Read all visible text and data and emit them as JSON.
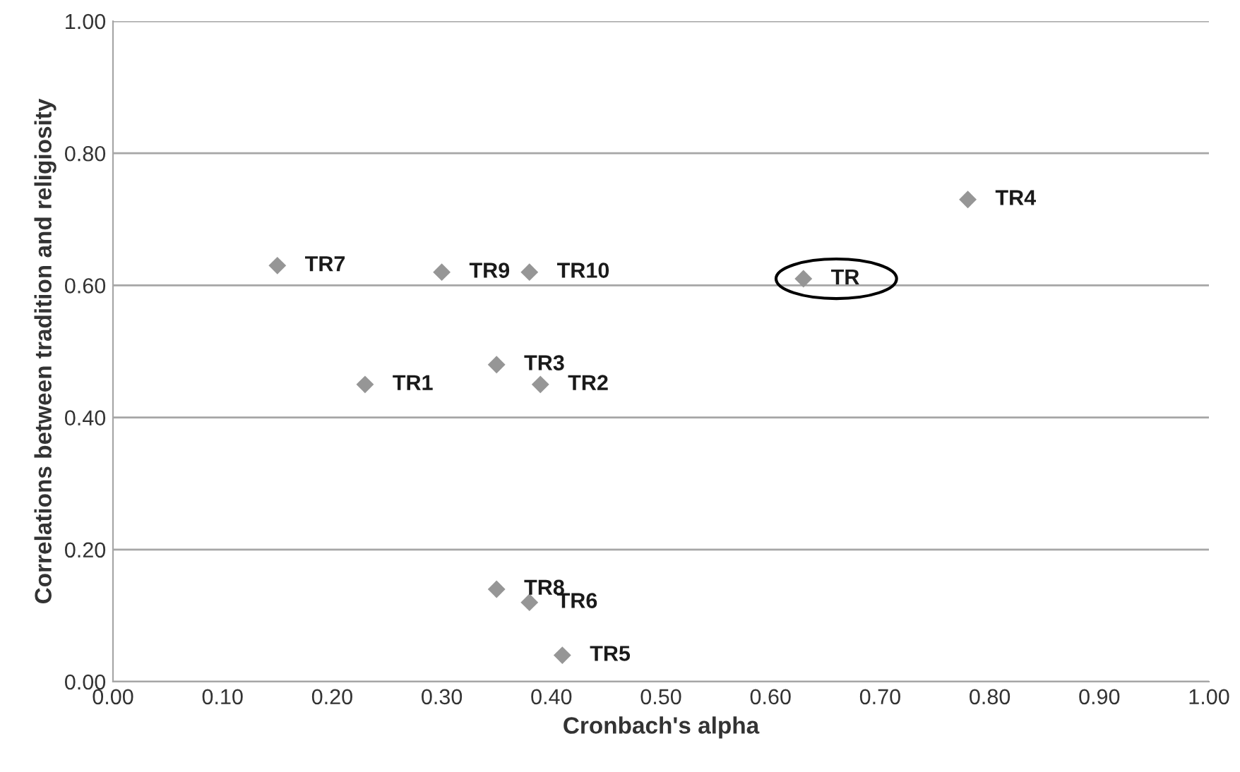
{
  "chart_data": {
    "type": "scatter",
    "xlabel": "Cronbach's alpha",
    "ylabel": "Correlations between tradition and religiosity",
    "x": [
      0.15,
      0.3,
      0.38,
      0.35,
      0.23,
      0.39,
      0.35,
      0.38,
      0.41,
      0.78,
      0.63
    ],
    "values": [
      0.63,
      0.62,
      0.62,
      0.48,
      0.45,
      0.45,
      0.14,
      0.12,
      0.04,
      0.73,
      0.61
    ],
    "color": "#969696",
    "marker": "diamond",
    "grid": "y",
    "annotations": [
      {
        "text": "TR7",
        "x": 0.15,
        "y": 0.63
      },
      {
        "text": "TR9",
        "x": 0.3,
        "y": 0.62
      },
      {
        "text": "TR10",
        "x": 0.38,
        "y": 0.62
      },
      {
        "text": "TR3",
        "x": 0.35,
        "y": 0.48
      },
      {
        "text": "TR1",
        "x": 0.23,
        "y": 0.45
      },
      {
        "text": "TR2",
        "x": 0.39,
        "y": 0.45
      },
      {
        "text": "TR8",
        "x": 0.35,
        "y": 0.14
      },
      {
        "text": "TR6",
        "x": 0.38,
        "y": 0.12
      },
      {
        "text": "TR5",
        "x": 0.41,
        "y": 0.04
      },
      {
        "text": "TR4",
        "x": 0.78,
        "y": 0.73
      },
      {
        "text": "TR",
        "x": 0.63,
        "y": 0.61
      }
    ],
    "xlim": [
      0,
      1
    ],
    "ylim": [
      0,
      1
    ],
    "xticks": [
      {
        "value": 0,
        "label": "0.00"
      },
      {
        "value": 0.1,
        "label": "0.10"
      },
      {
        "value": 0.2,
        "label": "0.20"
      },
      {
        "value": 0.3,
        "label": "0.30"
      },
      {
        "value": 0.4,
        "label": "0.40"
      },
      {
        "value": 0.5,
        "label": "0.50"
      },
      {
        "value": 0.6,
        "label": "0.60"
      },
      {
        "value": 0.7,
        "label": "0.70"
      },
      {
        "value": 0.8,
        "label": "0.80"
      },
      {
        "value": 0.9,
        "label": "0.90"
      },
      {
        "value": 1,
        "label": "1.00"
      }
    ],
    "yticks": [
      {
        "value": 0,
        "label": "0.00"
      },
      {
        "value": 0.2,
        "label": "0.20"
      },
      {
        "value": 0.4,
        "label": "0.40"
      },
      {
        "value": 0.6,
        "label": "0.60"
      },
      {
        "value": 0.8,
        "label": "0.80"
      },
      {
        "value": 1,
        "label": "1.00"
      }
    ]
  }
}
